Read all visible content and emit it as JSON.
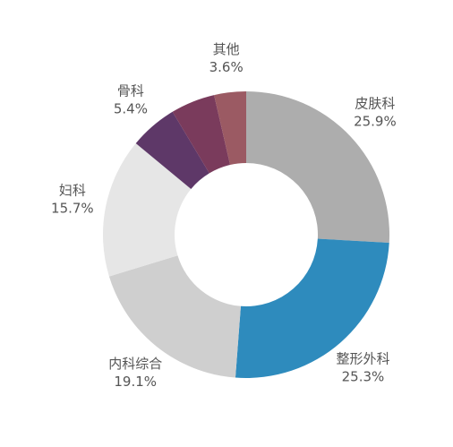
{
  "chart_data": {
    "type": "donut",
    "categories": [
      "皮肤科",
      "整形外科",
      "内科综合",
      "妇科",
      "骨科",
      null,
      "其他"
    ],
    "values": [
      25.9,
      25.3,
      19.1,
      15.7,
      5.4,
      5.0,
      3.6
    ],
    "value_labels": [
      "25.9%",
      "25.3%",
      "19.1%",
      "15.7%",
      "5.4%",
      null,
      "3.6%"
    ],
    "colors": [
      "#adadad",
      "#2e8bbd",
      "#cfcfcf",
      "#e6e6e6",
      "#5e3868",
      "#7a3b5c",
      "#9b5a63"
    ]
  }
}
